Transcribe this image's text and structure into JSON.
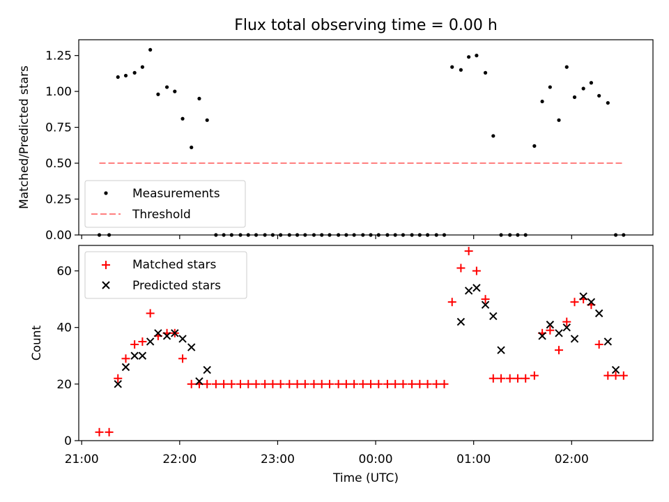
{
  "chart_data": [
    {
      "type": "scatter",
      "title": "Flux total observing time = 0.00 h",
      "xlabel": "",
      "ylabel": "Matched/Predicted stars",
      "xlim_hours": [
        20.97,
        26.83
      ],
      "ylim": [
        0,
        1.36
      ],
      "yticks": [
        0.0,
        0.25,
        0.5,
        0.75,
        1.0,
        1.25
      ],
      "ytick_labels": [
        "0.00",
        "0.25",
        "0.50",
        "0.75",
        "1.00",
        "1.25"
      ],
      "legend_placement": "lower-left",
      "series": [
        {
          "name": "Measurements",
          "marker": "dot",
          "color": "#000000",
          "x_hours": [
            21.18,
            21.28,
            21.37,
            21.45,
            21.54,
            21.62,
            21.7,
            21.78,
            21.87,
            21.95,
            22.03,
            22.12,
            22.2,
            22.28,
            22.37,
            22.45,
            22.53,
            22.62,
            22.7,
            22.78,
            22.87,
            22.95,
            23.03,
            23.12,
            23.2,
            23.28,
            23.37,
            23.45,
            23.53,
            23.62,
            23.7,
            23.78,
            23.87,
            23.95,
            24.03,
            24.12,
            24.2,
            24.28,
            24.37,
            24.45,
            24.53,
            24.62,
            24.7,
            24.78,
            24.87,
            24.95,
            25.03,
            25.12,
            25.2,
            25.28,
            25.37,
            25.45,
            25.53,
            25.62,
            25.7,
            25.78,
            25.87,
            25.95,
            26.03,
            26.12,
            26.2,
            26.28,
            26.37,
            26.45,
            26.53
          ],
          "y": [
            0.0,
            0.0,
            1.1,
            1.11,
            1.13,
            1.17,
            1.29,
            0.98,
            1.03,
            1.0,
            0.81,
            0.61,
            0.95,
            0.8,
            0.0,
            0.0,
            0.0,
            0.0,
            0.0,
            0.0,
            0.0,
            0.0,
            0.0,
            0.0,
            0.0,
            0.0,
            0.0,
            0.0,
            0.0,
            0.0,
            0.0,
            0.0,
            0.0,
            0.0,
            0.0,
            0.0,
            0.0,
            0.0,
            0.0,
            0.0,
            0.0,
            0.0,
            0.0,
            1.17,
            1.15,
            1.24,
            1.25,
            1.13,
            0.69,
            0.0,
            0.0,
            0.0,
            0.0,
            0.62,
            0.93,
            1.03,
            0.8,
            1.17,
            0.96,
            1.02,
            1.06,
            0.97,
            0.92,
            0.0,
            0.0
          ]
        },
        {
          "name": "Threshold",
          "style": "dashed",
          "color": "#ff7f7f",
          "x_hours": [
            21.18,
            26.53
          ],
          "y": [
            0.5,
            0.5
          ]
        }
      ]
    },
    {
      "type": "scatter",
      "title": "",
      "xlabel": "Time (UTC)",
      "ylabel": "Count",
      "xlim_hours": [
        20.97,
        26.83
      ],
      "ylim": [
        0,
        69
      ],
      "yticks": [
        0,
        20,
        40,
        60
      ],
      "ytick_labels": [
        "0",
        "20",
        "40",
        "60"
      ],
      "xticks_hours": [
        21,
        22,
        23,
        24,
        25,
        26
      ],
      "xtick_labels": [
        "21:00",
        "22:00",
        "23:00",
        "00:00",
        "01:00",
        "02:00"
      ],
      "legend_placement": "top-left",
      "series": [
        {
          "name": "Matched stars",
          "marker": "plus",
          "color": "#ff0000",
          "x_hours": [
            21.18,
            21.28,
            21.37,
            21.45,
            21.54,
            21.62,
            21.7,
            21.78,
            21.87,
            21.95,
            22.03,
            22.12,
            22.2,
            22.28,
            22.37,
            22.45,
            22.53,
            22.62,
            22.7,
            22.78,
            22.87,
            22.95,
            23.03,
            23.12,
            23.2,
            23.28,
            23.37,
            23.45,
            23.53,
            23.62,
            23.7,
            23.78,
            23.87,
            23.95,
            24.03,
            24.12,
            24.2,
            24.28,
            24.37,
            24.45,
            24.53,
            24.62,
            24.7,
            24.78,
            24.87,
            24.95,
            25.03,
            25.12,
            25.2,
            25.28,
            25.37,
            25.45,
            25.53,
            25.62,
            25.7,
            25.78,
            25.87,
            25.95,
            26.03,
            26.12,
            26.2,
            26.28,
            26.37,
            26.45,
            26.53
          ],
          "y": [
            3,
            3,
            22,
            29,
            34,
            35,
            45,
            37,
            38,
            38,
            29,
            20,
            20,
            20,
            20,
            20,
            20,
            20,
            20,
            20,
            20,
            20,
            20,
            20,
            20,
            20,
            20,
            20,
            20,
            20,
            20,
            20,
            20,
            20,
            20,
            20,
            20,
            20,
            20,
            20,
            20,
            20,
            20,
            49,
            61,
            67,
            60,
            50,
            22,
            22,
            22,
            22,
            22,
            23,
            38,
            39,
            32,
            42,
            49,
            50,
            48,
            34,
            23,
            23,
            23
          ]
        },
        {
          "name": "Predicted stars",
          "marker": "x",
          "color": "#000000",
          "x_hours": [
            21.37,
            21.45,
            21.54,
            21.62,
            21.7,
            21.78,
            21.87,
            21.95,
            22.03,
            22.12,
            22.2,
            22.28,
            24.87,
            24.95,
            25.03,
            25.12,
            25.2,
            25.28,
            25.7,
            25.78,
            25.87,
            25.95,
            26.03,
            26.12,
            26.2,
            26.28,
            26.37,
            26.45
          ],
          "y": [
            20,
            26,
            30,
            30,
            35,
            38,
            37,
            38,
            36,
            33,
            21,
            25,
            42,
            53,
            54,
            48,
            44,
            32,
            37,
            41,
            38,
            40,
            36,
            51,
            49,
            45,
            35,
            25
          ]
        }
      ]
    }
  ]
}
